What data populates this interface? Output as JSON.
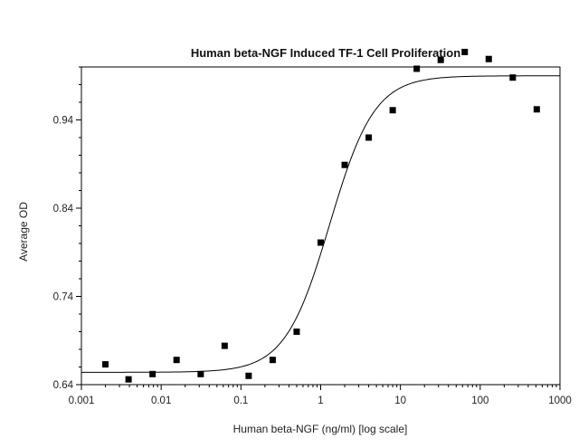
{
  "chart_data": {
    "type": "scatter",
    "title": "Human beta-NGF Induced TF-1 Cell Proliferation",
    "xlabel": "Human beta-NGF (ng/ml) [log scale]",
    "ylabel": "Average OD",
    "x_scale": "log",
    "xlim": [
      0.001,
      1000
    ],
    "ylim": [
      0.64,
      1.0
    ],
    "x_ticks": [
      {
        "value": 0.001,
        "label": "0.001"
      },
      {
        "value": 0.01,
        "label": "0.01"
      },
      {
        "value": 0.1,
        "label": "0.1"
      },
      {
        "value": 1,
        "label": "1"
      },
      {
        "value": 10,
        "label": "10"
      },
      {
        "value": 100,
        "label": "100"
      },
      {
        "value": 1000,
        "label": "1000"
      }
    ],
    "y_ticks": [
      {
        "value": 0.64,
        "label": "0.64"
      },
      {
        "value": 0.74,
        "label": "0.74"
      },
      {
        "value": 0.84,
        "label": "0.84"
      },
      {
        "value": 0.94,
        "label": "0.94"
      }
    ],
    "grid": false,
    "points": [
      {
        "x": 0.002,
        "y": 0.663
      },
      {
        "x": 0.0039,
        "y": 0.646
      },
      {
        "x": 0.0078,
        "y": 0.652
      },
      {
        "x": 0.0156,
        "y": 0.668
      },
      {
        "x": 0.0313,
        "y": 0.652
      },
      {
        "x": 0.0625,
        "y": 0.684
      },
      {
        "x": 0.125,
        "y": 0.65
      },
      {
        "x": 0.25,
        "y": 0.668
      },
      {
        "x": 0.5,
        "y": 0.7
      },
      {
        "x": 1,
        "y": 0.801
      },
      {
        "x": 2,
        "y": 0.889
      },
      {
        "x": 4,
        "y": 0.92
      },
      {
        "x": 8,
        "y": 0.951
      },
      {
        "x": 16,
        "y": 0.998
      },
      {
        "x": 32,
        "y": 1.008
      },
      {
        "x": 64,
        "y": 1.017
      },
      {
        "x": 128,
        "y": 1.009
      },
      {
        "x": 256,
        "y": 0.988
      },
      {
        "x": 512,
        "y": 0.952
      }
    ],
    "fit": {
      "type": "4PL",
      "bottom": 0.654,
      "top": 0.99,
      "ec50": 1.3,
      "hill": 1.55
    }
  }
}
